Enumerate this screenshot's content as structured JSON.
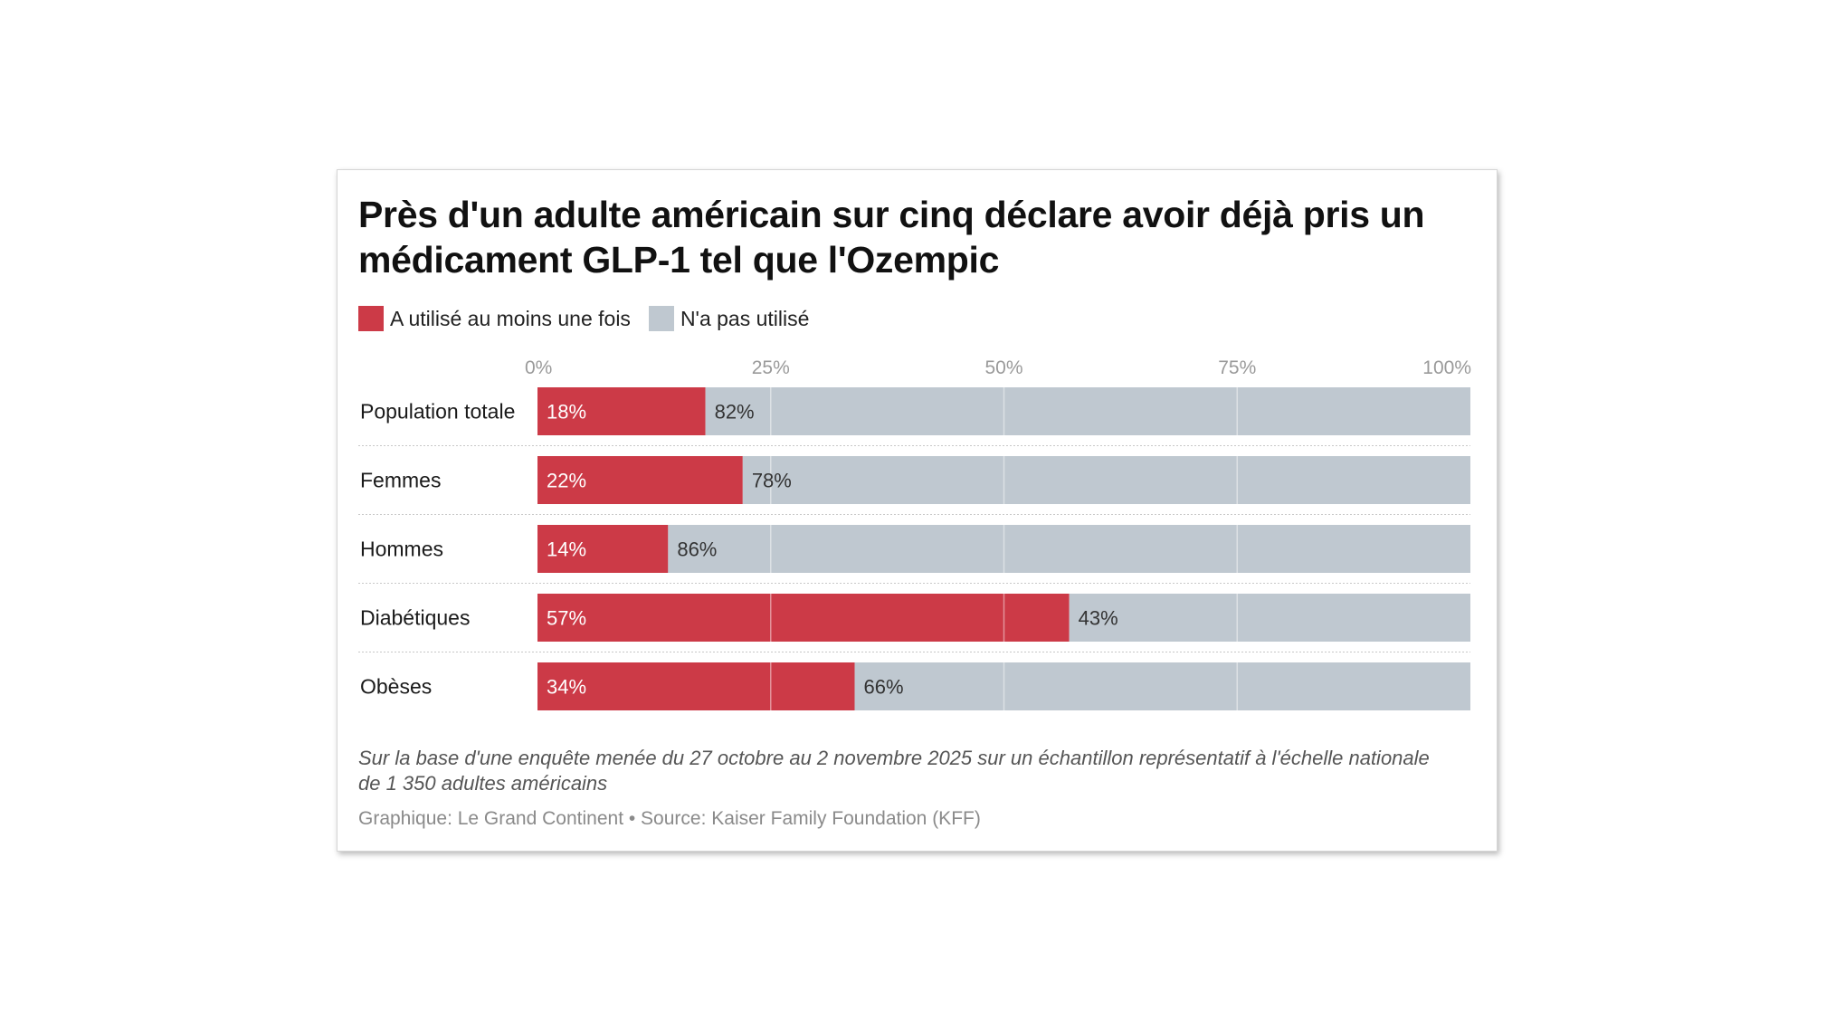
{
  "chart_data": {
    "type": "bar",
    "orientation": "horizontal",
    "stacked": true,
    "title": "Près d'un adulte américain sur cinq déclare avoir déjà pris un médicament GLP-1 tel que l'Ozempic",
    "categories": [
      "Population totale",
      "Femmes",
      "Hommes",
      "Diabétiques",
      "Obèses"
    ],
    "series": [
      {
        "name": "A utilisé au moins une fois",
        "color": "#cc3a47",
        "values": [
          18,
          22,
          14,
          57,
          34
        ],
        "labels": [
          "18%",
          "22%",
          "14%",
          "57%",
          "34%"
        ]
      },
      {
        "name": "N'a pas utilisé",
        "color": "#bfc8d0",
        "values": [
          82,
          78,
          86,
          43,
          66
        ],
        "labels": [
          "82%",
          "78%",
          "86%",
          "43%",
          "66%"
        ]
      }
    ],
    "xlim": [
      0,
      100
    ],
    "xticks": [
      0,
      25,
      50,
      75,
      100
    ],
    "xtick_labels": [
      "0%",
      "25%",
      "50%",
      "75%",
      "100%"
    ],
    "grid": true,
    "legend_position": "top-left"
  },
  "note": "Sur la base d'une enquête menée du 27 octobre au 2 novembre 2025 sur un échantillon représentatif à l'échelle nationale de 1 350 adultes américains",
  "source": "Graphique: Le Grand Continent • Source: Kaiser Family Foundation (KFF)"
}
